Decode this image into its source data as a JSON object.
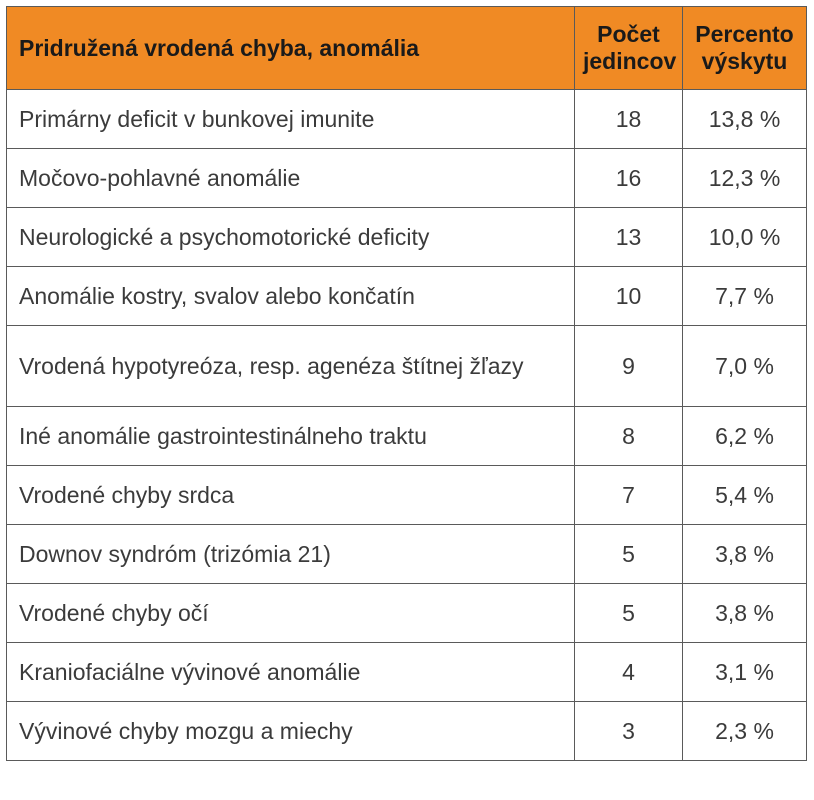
{
  "table": {
    "headers": {
      "anomaly": "Pridružená vrodená chyba, anomália",
      "count": "Počet jedincov",
      "percent": "Percento výskytu"
    },
    "rows": [
      {
        "anomaly": "Primárny deficit v bunkovej imunite",
        "count": "18",
        "percent": "13,8 %"
      },
      {
        "anomaly": "Močovo-pohlavné anomálie",
        "count": "16",
        "percent": "12,3 %"
      },
      {
        "anomaly": "Neurologické a psychomotorické deficity",
        "count": "13",
        "percent": "10,0 %"
      },
      {
        "anomaly": "Anomálie kostry, svalov alebo končatín",
        "count": "10",
        "percent": "7,7 %"
      },
      {
        "anomaly": "Vrodená hypotyreóza, resp. agenéza štítnej žľazy",
        "count": "9",
        "percent": "7,0 %"
      },
      {
        "anomaly": "Iné anomálie gastrointestinálneho traktu",
        "count": "8",
        "percent": "6,2 %"
      },
      {
        "anomaly": "Vrodené chyby srdca",
        "count": "7",
        "percent": "5,4 %"
      },
      {
        "anomaly": "Downov syndróm (trizómia 21)",
        "count": "5",
        "percent": "3,8 %"
      },
      {
        "anomaly": "Vrodené chyby očí",
        "count": "5",
        "percent": "3,8 %"
      },
      {
        "anomaly": "Kraniofaciálne vývinové anomálie",
        "count": "4",
        "percent": "3,1 %"
      },
      {
        "anomaly": "Vývinové chyby mozgu a miechy",
        "count": "3",
        "percent": "2,3 %"
      }
    ]
  },
  "colors": {
    "header_bg": "#f08a24",
    "border": "#5a5a5a",
    "text": "#3b3b3b"
  }
}
